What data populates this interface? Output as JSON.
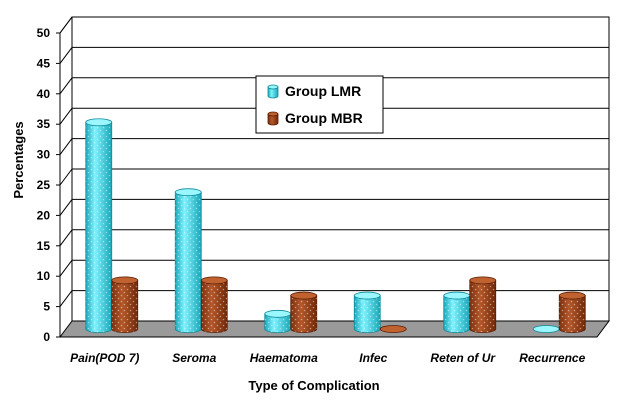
{
  "chart_data": {
    "type": "bar",
    "title": "",
    "xlabel": "Type of Complication",
    "ylabel": "Percentages",
    "ylim": [
      0,
      50
    ],
    "yticks": [
      0,
      5,
      10,
      15,
      20,
      25,
      30,
      35,
      40,
      45,
      50
    ],
    "grid": true,
    "legend_position": "center",
    "categories": [
      "Pain(POD 7)",
      "Seroma",
      "Haematoma",
      "Infec",
      "Reten of Ur",
      "Recurrence"
    ],
    "series": [
      {
        "name": "Group LMR",
        "color": "#33CCDD",
        "values": [
          34,
          22.5,
          2.5,
          5.5,
          5.5,
          0
        ]
      },
      {
        "name": "Group MBR",
        "color": "#A0471C",
        "values": [
          8,
          8,
          5.5,
          0,
          8,
          5.5
        ]
      }
    ]
  }
}
